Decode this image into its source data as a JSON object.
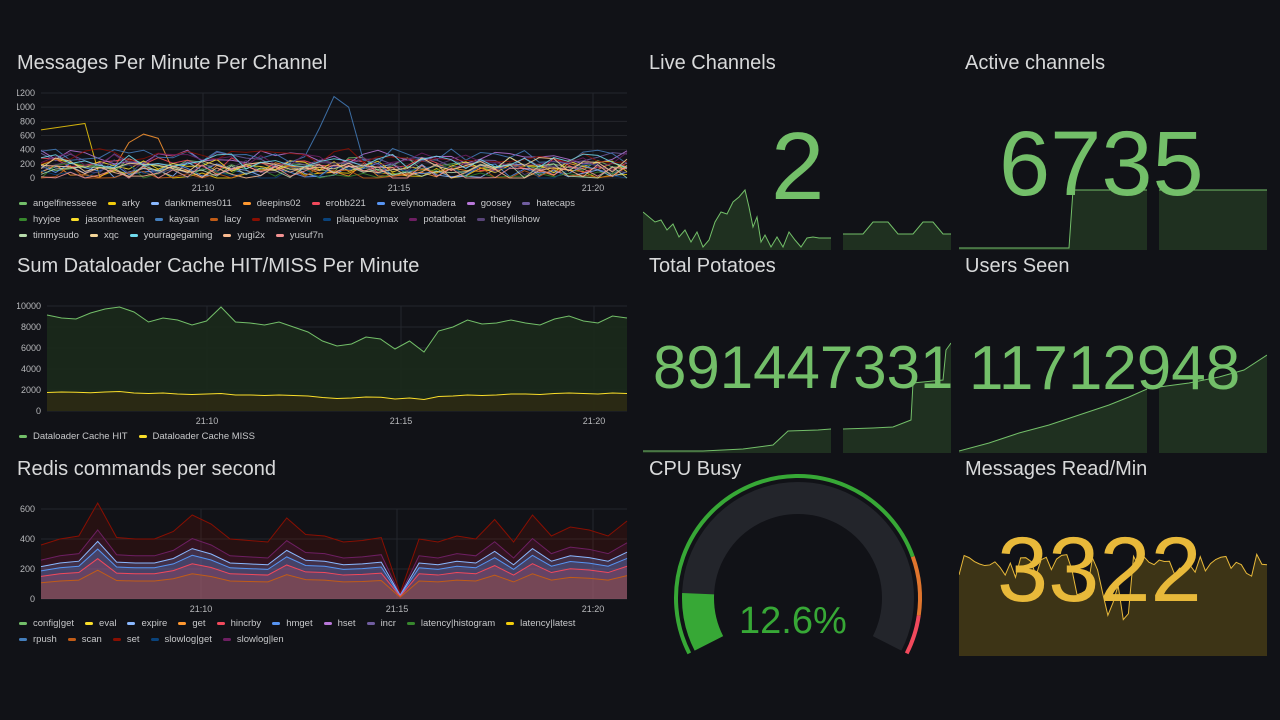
{
  "colors": {
    "green": "#73bf69",
    "yellow": "#fade2a",
    "orange": "#f2cc0c",
    "gaugeGreen": "#37a836",
    "gold": "#e8b93a"
  },
  "panels": {
    "messages": {
      "title": "Messages Per Minute Per Channel",
      "yticks": [
        "1200",
        "1000",
        "800",
        "600",
        "400",
        "200",
        "0"
      ],
      "xticks": [
        "21:10",
        "21:15",
        "21:20"
      ],
      "legend": [
        {
          "name": "angelfinesseee",
          "color": "#73bf69"
        },
        {
          "name": "arky",
          "color": "#f2cc0c"
        },
        {
          "name": "dankmemes011",
          "color": "#8ab8ff"
        },
        {
          "name": "deepins02",
          "color": "#ff9830"
        },
        {
          "name": "erobb221",
          "color": "#f2495c"
        },
        {
          "name": "evelynomadera",
          "color": "#5794f2"
        },
        {
          "name": "goosey",
          "color": "#b877d9"
        },
        {
          "name": "hatecaps",
          "color": "#705da0"
        },
        {
          "name": "hyyjoe",
          "color": "#37872d"
        },
        {
          "name": "jasontheween",
          "color": "#fade2a"
        },
        {
          "name": "kaysan",
          "color": "#447ebc"
        },
        {
          "name": "lacy",
          "color": "#c15c17"
        },
        {
          "name": "mdswervin",
          "color": "#890f02"
        },
        {
          "name": "plaqueboymax",
          "color": "#0a437c"
        },
        {
          "name": "potatbotat",
          "color": "#6d1f62"
        },
        {
          "name": "thetylilshow",
          "color": "#584477"
        },
        {
          "name": "timmysudo",
          "color": "#b7dbab"
        },
        {
          "name": "xqc",
          "color": "#f4d598"
        },
        {
          "name": "yourragegaming",
          "color": "#70dbed"
        },
        {
          "name": "yugi2x",
          "color": "#f9ba8f"
        },
        {
          "name": "yusuf7n",
          "color": "#f29191"
        }
      ]
    },
    "cache": {
      "title": "Sum Dataloader Cache HIT/MISS Per Minute",
      "yticks": [
        "10000",
        "8000",
        "6000",
        "4000",
        "2000",
        "0"
      ],
      "xticks": [
        "21:10",
        "21:15",
        "21:20"
      ],
      "legend": [
        {
          "name": "Dataloader Cache HIT",
          "color": "#73bf69"
        },
        {
          "name": "Dataloader Cache MISS",
          "color": "#fade2a"
        }
      ]
    },
    "redis": {
      "title": "Redis commands per second",
      "yticks": [
        "600",
        "400",
        "200",
        "0"
      ],
      "xticks": [
        "21:10",
        "21:15",
        "21:20"
      ],
      "legend": [
        {
          "name": "config|get",
          "color": "#73bf69"
        },
        {
          "name": "eval",
          "color": "#fade2a"
        },
        {
          "name": "expire",
          "color": "#8ab8ff"
        },
        {
          "name": "get",
          "color": "#ff9830"
        },
        {
          "name": "hincrby",
          "color": "#f2495c"
        },
        {
          "name": "hmget",
          "color": "#5794f2"
        },
        {
          "name": "hset",
          "color": "#b877d9"
        },
        {
          "name": "incr",
          "color": "#705da0"
        },
        {
          "name": "latency|histogram",
          "color": "#37872d"
        },
        {
          "name": "latency|latest",
          "color": "#f2cc0c"
        },
        {
          "name": "rpush",
          "color": "#447ebc"
        },
        {
          "name": "scan",
          "color": "#c15c17"
        },
        {
          "name": "set",
          "color": "#890f02"
        },
        {
          "name": "slowlog|get",
          "color": "#0a437c"
        },
        {
          "name": "slowlog|len",
          "color": "#6d1f62"
        }
      ]
    },
    "liveChannels": {
      "title": "Live Channels",
      "value": "2"
    },
    "activeChannels": {
      "title": "Active channels",
      "value": "6735"
    },
    "totalPotatoes": {
      "title": "Total Potatoes",
      "value": "891447331"
    },
    "usersSeen": {
      "title": "Users Seen",
      "value": "11712948"
    },
    "cpuBusy": {
      "title": "CPU Busy",
      "value": "12.6%",
      "percent": 12.6
    },
    "messagesRead": {
      "title": "Messages Read/Min",
      "value": "3322"
    }
  }
}
